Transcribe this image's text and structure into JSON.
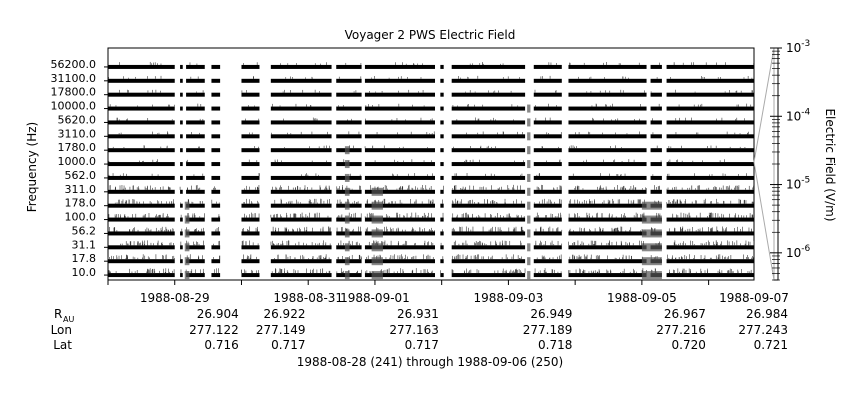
{
  "chart_data": {
    "type": "heatmap",
    "title": "Voyager 2 PWS Electric Field",
    "ylabel": "Frequency (Hz)",
    "colorbar_label": "Electric Field (V/m)",
    "colorbar_scale": "log",
    "colorbar_range": [
      4e-07,
      0.001
    ],
    "colorbar_ticks": [
      {
        "value": 0.001,
        "base": "10",
        "exp": "-3"
      },
      {
        "value": 0.0001,
        "base": "10",
        "exp": "-4"
      },
      {
        "value": 1e-05,
        "base": "10",
        "exp": "-5"
      },
      {
        "value": 1e-06,
        "base": "10",
        "exp": "-6"
      }
    ],
    "channels": [
      "56200.0",
      "31100.0",
      "17800.0",
      "10000.0",
      "5620.0",
      "3110.0",
      "1780.0",
      "1000.0",
      "562.0",
      "311.0",
      "178.0",
      "100.0",
      "56.2",
      "31.1",
      "17.8",
      "10.0"
    ],
    "x_range_days": [
      0,
      9.68
    ],
    "data_segments_days": [
      [
        0,
        1.0
      ],
      [
        1.08,
        1.12
      ],
      [
        1.17,
        1.45
      ],
      [
        1.55,
        1.68
      ],
      [
        2.0,
        2.27
      ],
      [
        2.44,
        3.35
      ],
      [
        3.42,
        3.8
      ],
      [
        3.85,
        4.9
      ],
      [
        4.98,
        5.03
      ],
      [
        5.15,
        6.25
      ],
      [
        6.38,
        6.8
      ],
      [
        6.9,
        8.07
      ],
      [
        8.13,
        8.3
      ],
      [
        8.37,
        9.68
      ]
    ],
    "ephemeris_labels": [
      "R",
      "Lon",
      "Lat"
    ],
    "ephemeris_sub": "AU",
    "x_ticks": [
      {
        "date": "1988-08-29",
        "day": 1.0,
        "r": "",
        "lon": "",
        "lat": ""
      },
      {
        "date": "1988-08-31",
        "day": 3.0,
        "r": "26.904",
        "lon": "277.122",
        "lat": "0.716"
      },
      {
        "date": "1988-09-01",
        "day": 4.0,
        "r": "26.922",
        "lon": "277.149",
        "lat": "0.717"
      },
      {
        "date": "1988-09-03",
        "day": 6.0,
        "r": "26.931",
        "lon": "277.163",
        "lat": "0.717"
      },
      {
        "date": "1988-09-05",
        "day": 8.0,
        "r": "26.949",
        "lon": "277.189",
        "lat": "0.718"
      },
      {
        "date": "1988-09-07",
        "day": 10.0,
        "r": "26.967",
        "lon": "277.216",
        "lat": "0.720"
      }
    ],
    "extra_ephemeris": {
      "r": "26.984",
      "lon": "277.243",
      "lat": "0.721"
    },
    "date_labels": [
      "1988-08-29",
      "1988-08-31",
      "1988-09-01",
      "1988-09-03",
      "1988-09-05",
      "1988-09-07"
    ],
    "footer": "1988-08-28 (241) through 1988-09-06 (250)"
  }
}
